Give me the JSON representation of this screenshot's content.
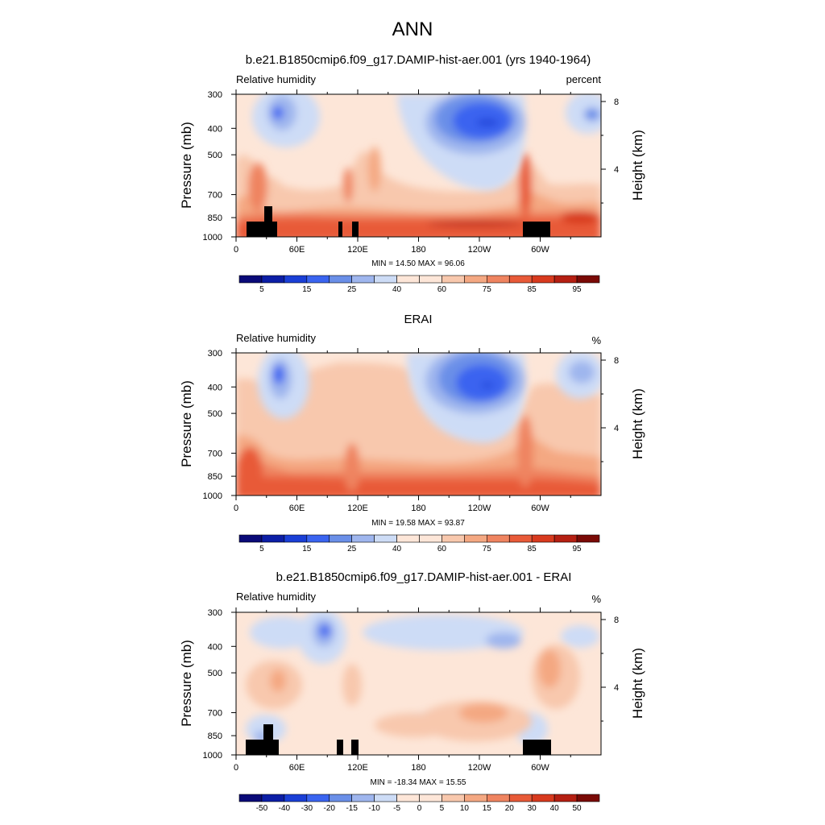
{
  "figure": {
    "title": "ANN"
  },
  "chart_data": [
    {
      "type": "heatmap",
      "title": "b.e21.B1850cmip6.f09_g17.DAMIP-hist-aer.001 (yrs 1940-1964)",
      "left_label": "Relative humidity",
      "right_label": "percent",
      "ylabel": "Pressure (mb)",
      "y2label": "Height (km)",
      "xticks": [
        "0",
        "60E",
        "120E",
        "180",
        "120W",
        "60W"
      ],
      "yticks": [
        "300",
        "400",
        "500",
        "700",
        "850",
        "1000"
      ],
      "y2ticks": [
        "8",
        "4"
      ],
      "stats": "MIN =  14.50  MAX =  96.06",
      "min": 14.5,
      "max": 96.06,
      "colorbar_labels": [
        "5",
        "15",
        "25",
        "40",
        "60",
        "75",
        "85",
        "95"
      ]
    },
    {
      "type": "heatmap",
      "title": "ERAI",
      "left_label": "Relative humidity",
      "right_label": "%",
      "ylabel": "Pressure (mb)",
      "y2label": "Height (km)",
      "xticks": [
        "0",
        "60E",
        "120E",
        "180",
        "120W",
        "60W"
      ],
      "yticks": [
        "300",
        "400",
        "500",
        "700",
        "850",
        "1000"
      ],
      "y2ticks": [
        "8",
        "4"
      ],
      "stats": "MIN =  19.58  MAX =  93.87",
      "min": 19.58,
      "max": 93.87,
      "colorbar_labels": [
        "5",
        "15",
        "25",
        "40",
        "60",
        "75",
        "85",
        "95"
      ]
    },
    {
      "type": "heatmap",
      "title": "b.e21.B1850cmip6.f09_g17.DAMIP-hist-aer.001 - ERAI",
      "left_label": "Relative humidity",
      "right_label": "%",
      "ylabel": "Pressure (mb)",
      "y2label": "Height (km)",
      "xticks": [
        "0",
        "60E",
        "120E",
        "180",
        "120W",
        "60W"
      ],
      "yticks": [
        "300",
        "400",
        "500",
        "700",
        "850",
        "1000"
      ],
      "y2ticks": [
        "8",
        "4"
      ],
      "stats": "MIN = -18.34  MAX =  15.55",
      "min": -18.34,
      "max": 15.55,
      "colorbar_labels": [
        "-50",
        "-40",
        "-30",
        "-20",
        "-15",
        "-10",
        "-5",
        "0",
        "5",
        "10",
        "15",
        "20",
        "30",
        "40",
        "50"
      ]
    }
  ],
  "colors": {
    "colormap": [
      "#0a0a78",
      "#0c1ea6",
      "#1a3fd6",
      "#3a64f0",
      "#6a8fe8",
      "#9fb6ee",
      "#cddcf6",
      "#fde6d8",
      "#f8c8ad",
      "#f4a882",
      "#ef8460",
      "#e85a38",
      "#d83a1e",
      "#b51f12",
      "#7a0a06"
    ]
  }
}
